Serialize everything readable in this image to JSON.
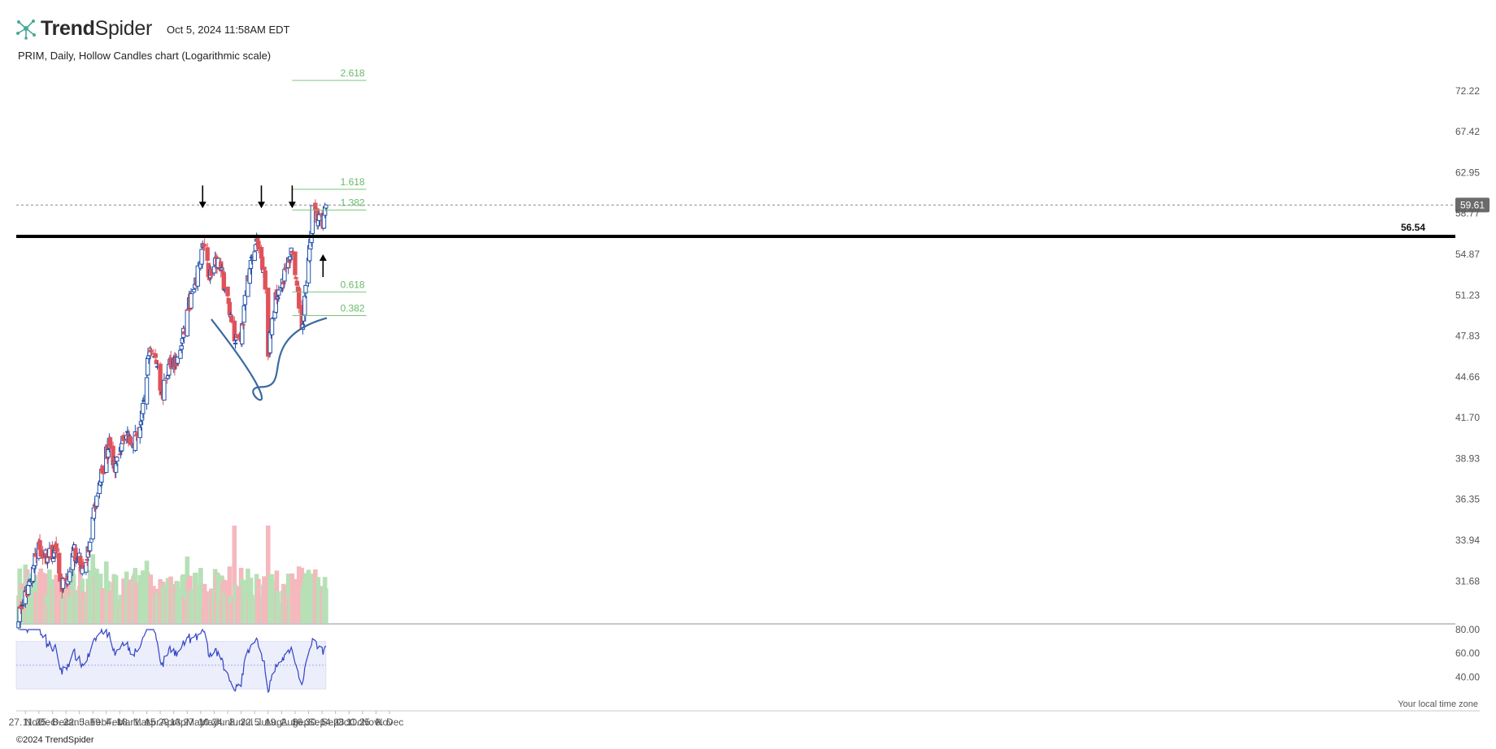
{
  "header": {
    "brand_prefix": "Trend",
    "brand_suffix": "Spider",
    "datetime": "Oct 5, 2024 11:58AM EDT",
    "subtitle": "PRIM, Daily, Hollow Candles chart (Logarithmic scale)"
  },
  "footer": {
    "copyright": "©2024 TrendSpider"
  },
  "colors": {
    "up": "#1f4fa8",
    "down": "#e0525a",
    "vol_up": "#b6e0b6",
    "vol_down": "#f5b8bd",
    "rsi_line": "#3344c4",
    "rsi_band": "#eceefb",
    "fib": "#7cc47c",
    "arc": "#3b6aa0",
    "resistance": "#000000",
    "price_tag": "#6b6b6b"
  },
  "chart_data": {
    "type": "candlestick",
    "y_scale": "log",
    "ylim": [
      29.6,
      74.2
    ],
    "y_ticks": [
      "72.22",
      "67.42",
      "62.95",
      "58.77",
      "54.87",
      "51.23",
      "47.83",
      "44.66",
      "41.70",
      "38.93",
      "36.35",
      "33.94",
      "31.68"
    ],
    "y_tick_values": [
      72.22,
      67.42,
      62.95,
      58.77,
      54.87,
      51.23,
      47.83,
      44.66,
      41.7,
      38.93,
      36.35,
      33.94,
      31.68
    ],
    "x_labels": [
      "27. Nov",
      "11. Dec",
      "25. Dec",
      "8. Jan",
      "22. Jan",
      "5. Feb",
      "19. Feb",
      "4. Mar",
      "18. Mar",
      "1. Apr",
      "15. Apr",
      "29. Apr",
      "13. May",
      "27. May",
      "10. Jun",
      "24. Jun",
      "8. Jul",
      "22. Jul",
      "5. Aug",
      "19. Aug",
      "2. Sep",
      "16. Sep",
      "30. Sep",
      "14. Oct",
      "28. Oct",
      "11. Nov",
      "25. Nov",
      "9. Dec"
    ],
    "anchors": [
      {
        "date": "2023-11-20",
        "close": 30.0
      },
      {
        "date": "2023-11-27",
        "close": 30.8
      },
      {
        "date": "2023-12-06",
        "close": 32.6
      },
      {
        "date": "2023-12-11",
        "close": 33.6
      },
      {
        "date": "2023-12-18",
        "close": 33.0
      },
      {
        "date": "2023-12-28",
        "close": 33.2
      },
      {
        "date": "2024-01-04",
        "close": 31.4
      },
      {
        "date": "2024-01-09",
        "close": 31.8
      },
      {
        "date": "2024-01-17",
        "close": 33.3
      },
      {
        "date": "2024-01-26",
        "close": 32.3
      },
      {
        "date": "2024-02-02",
        "close": 33.6
      },
      {
        "date": "2024-02-07",
        "close": 35.8
      },
      {
        "date": "2024-02-15",
        "close": 38.2
      },
      {
        "date": "2024-02-23",
        "close": 40.2
      },
      {
        "date": "2024-02-28",
        "close": 37.9
      },
      {
        "date": "2024-03-07",
        "close": 40.6
      },
      {
        "date": "2024-03-19",
        "close": 40.2
      },
      {
        "date": "2024-03-27",
        "close": 41.6
      },
      {
        "date": "2024-04-04",
        "close": 47.0
      },
      {
        "date": "2024-04-12",
        "close": 45.6
      },
      {
        "date": "2024-04-17",
        "close": 43.2
      },
      {
        "date": "2024-04-26",
        "close": 46.0
      },
      {
        "date": "2024-05-03",
        "close": 45.8
      },
      {
        "date": "2024-05-09",
        "close": 47.8
      },
      {
        "date": "2024-05-14",
        "close": 50.2
      },
      {
        "date": "2024-05-22",
        "close": 52.0
      },
      {
        "date": "2024-05-29",
        "close": 55.8
      },
      {
        "date": "2024-06-05",
        "close": 53.0
      },
      {
        "date": "2024-06-14",
        "close": 54.2
      },
      {
        "date": "2024-06-21",
        "close": 52.0
      },
      {
        "date": "2024-07-01",
        "close": 47.8
      },
      {
        "date": "2024-07-08",
        "close": 47.9
      },
      {
        "date": "2024-07-16",
        "close": 53.2
      },
      {
        "date": "2024-07-24",
        "close": 56.0
      },
      {
        "date": "2024-08-01",
        "close": 53.6
      },
      {
        "date": "2024-08-05",
        "close": 46.5
      },
      {
        "date": "2024-08-14",
        "close": 51.5
      },
      {
        "date": "2024-08-22",
        "close": 53.0
      },
      {
        "date": "2024-08-30",
        "close": 55.5
      },
      {
        "date": "2024-09-03",
        "close": 52.0
      },
      {
        "date": "2024-09-09",
        "close": 48.6
      },
      {
        "date": "2024-09-12",
        "close": 51.0
      },
      {
        "date": "2024-09-17",
        "close": 55.0
      },
      {
        "date": "2024-09-20",
        "close": 59.0
      },
      {
        "date": "2024-09-24",
        "close": 58.4
      },
      {
        "date": "2024-10-01",
        "close": 57.6
      },
      {
        "date": "2024-10-04",
        "close": 59.6
      }
    ],
    "resistance": {
      "value": 56.54,
      "label": "56.54"
    },
    "last_price": {
      "value": 59.61,
      "label": "59.61"
    },
    "fib_levels": [
      {
        "label": "2.618",
        "value": 73.5
      },
      {
        "label": "1.618",
        "value": 61.2
      },
      {
        "label": "1.382",
        "value": 59.1
      },
      {
        "label": "0.618",
        "value": 51.5
      },
      {
        "label": "0.382",
        "value": 49.5
      }
    ],
    "annotations": {
      "down_arrows": [
        "2024-05-29",
        "2024-07-29",
        "2024-08-30"
      ],
      "up_arrows": [
        "2024-10-01"
      ],
      "cup_arc": {
        "start": "2024-06-07",
        "bottom": "2024-07-29",
        "end": "2024-10-05",
        "start_value": 49.2,
        "bottom_value": 43.9,
        "end_value": 49.3
      }
    },
    "rsi": {
      "ylim": [
        15,
        80
      ],
      "band": [
        30,
        70
      ],
      "mid": 50,
      "y_ticks": [
        "80.00",
        "60.00",
        "40.00"
      ],
      "y_tick_values": [
        80,
        60,
        40
      ]
    },
    "time_zone_note": "Your local time zone"
  }
}
